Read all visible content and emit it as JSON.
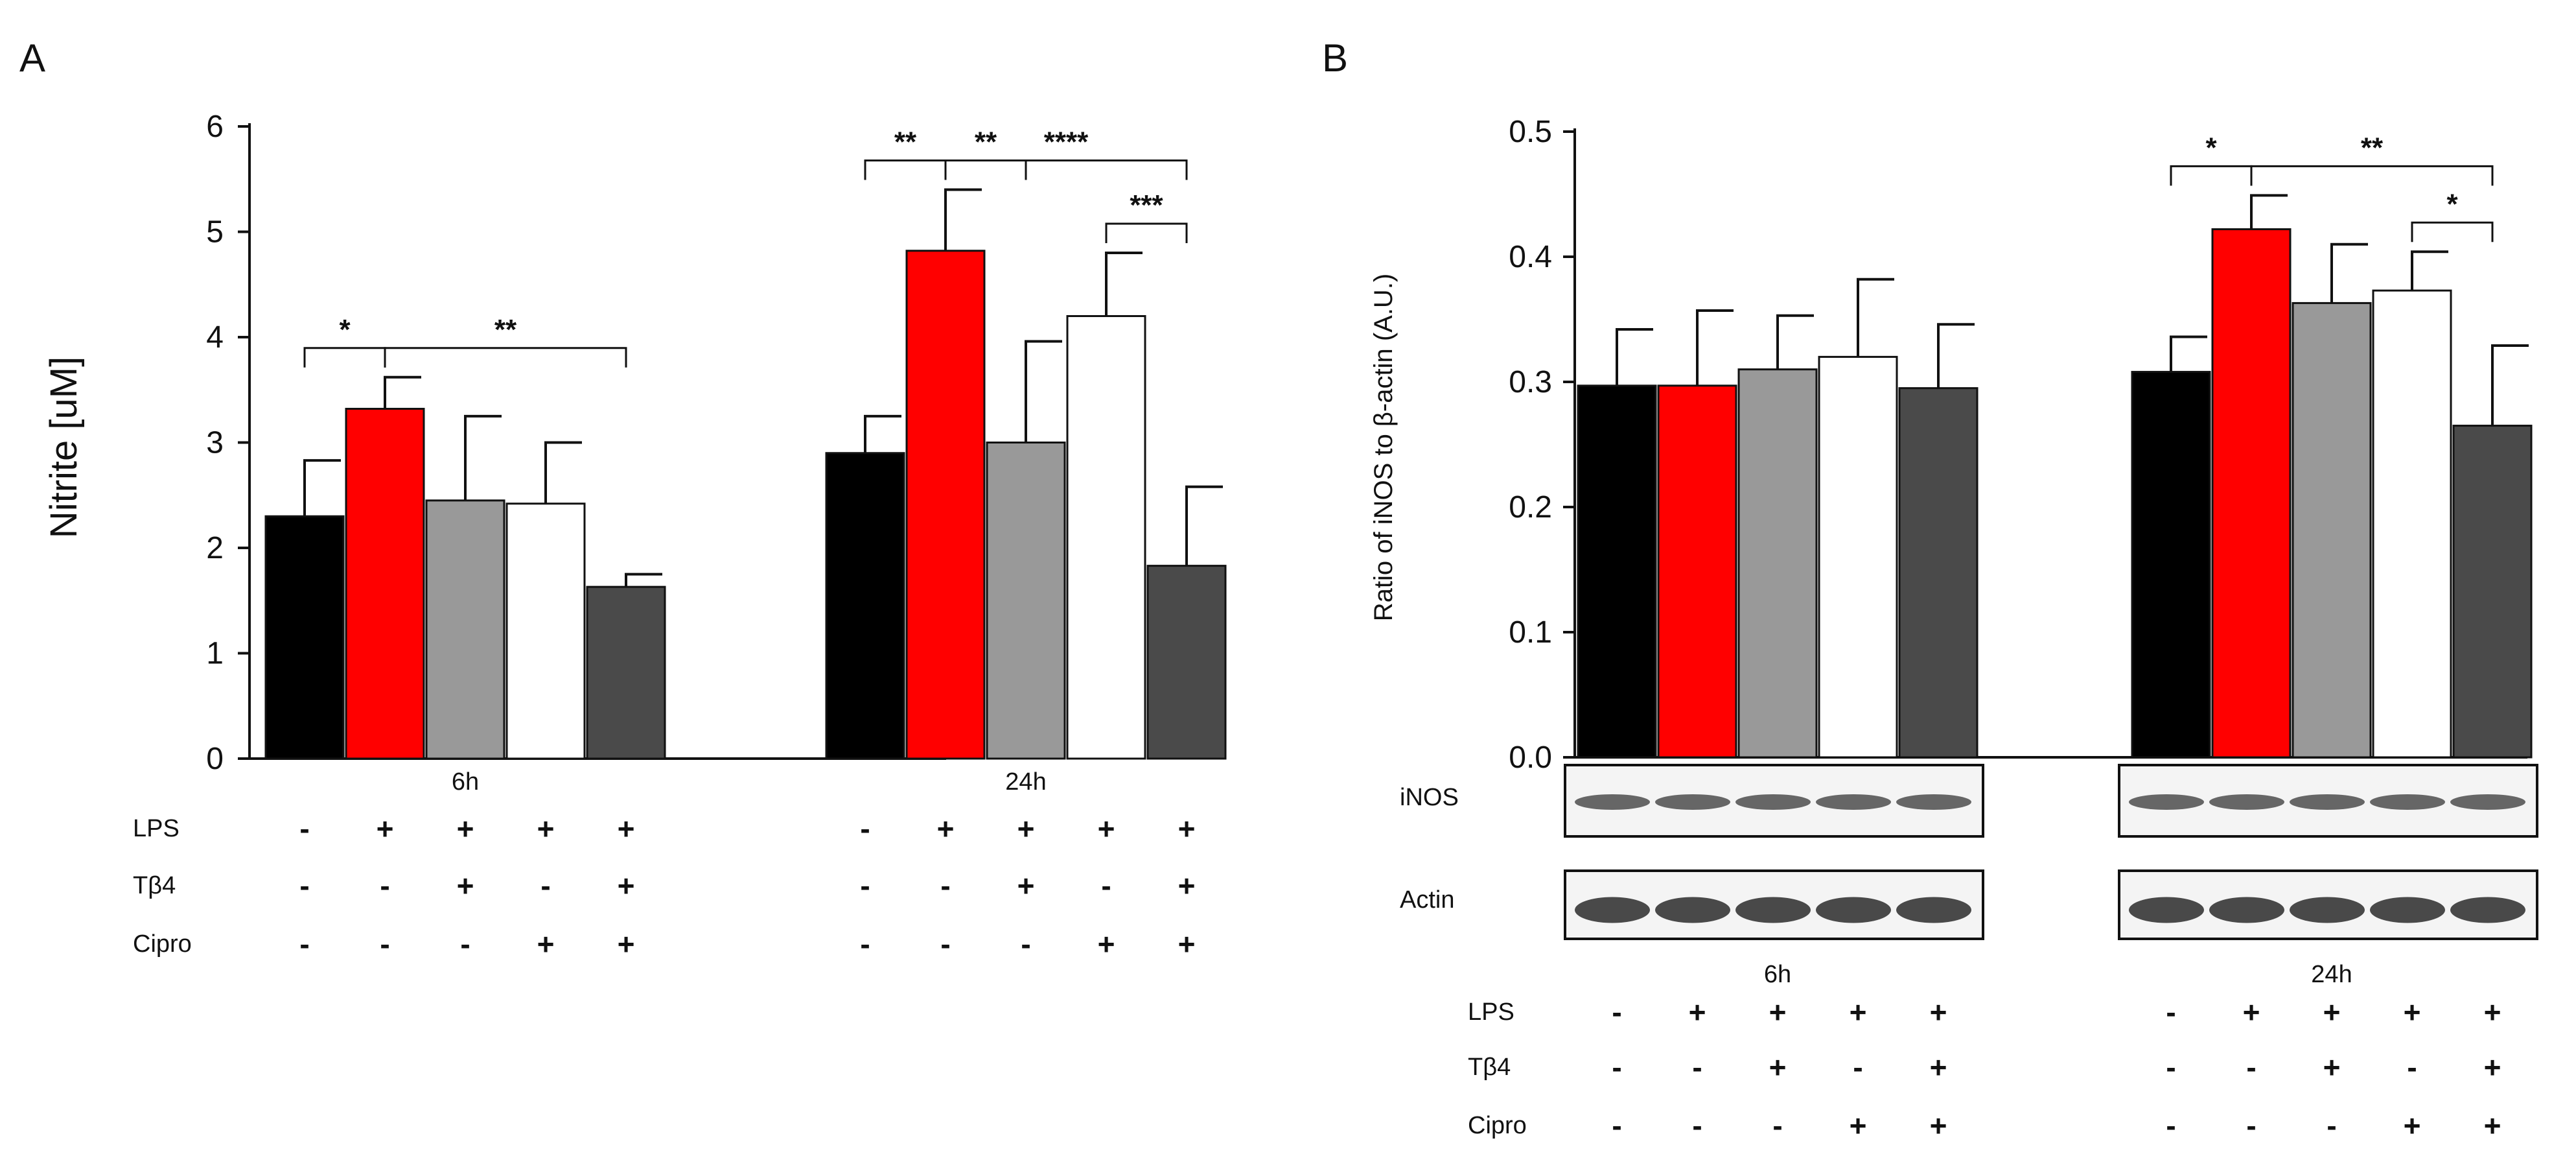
{
  "colors": {
    "control": "#000000",
    "LPS": "#ff0000",
    "LPS + Tβ4": "#999999",
    "LPS + Cipro": "#ffffff",
    "LPS + Tβ4 + Cipro": "#4a4a4a"
  },
  "chart_data": [
    {
      "panel": "A",
      "type": "bar",
      "ylabel": "Nitrite [uM]",
      "ylim": [
        0,
        6
      ],
      "yticks": [
        "0",
        "1",
        "2",
        "3",
        "4",
        "5",
        "6"
      ],
      "groups": [
        "6h",
        "24h"
      ],
      "treatments": [
        "control",
        "LPS",
        "LPS + Tβ4",
        "LPS + Cipro",
        "LPS + Tβ4 + Cipro"
      ],
      "values": [
        [
          2.3,
          3.32,
          2.45,
          2.42,
          1.63
        ],
        [
          2.9,
          4.82,
          3.0,
          4.2,
          1.83
        ]
      ],
      "errors": [
        [
          0.53,
          0.3,
          0.8,
          0.58,
          0.12
        ],
        [
          0.35,
          0.58,
          0.96,
          0.6,
          0.75
        ]
      ],
      "significance": [
        {
          "group": 0,
          "from": 0,
          "to": 1,
          "label": "*"
        },
        {
          "group": 0,
          "from": 1,
          "to": 4,
          "label": "**"
        },
        {
          "group": 1,
          "from": 0,
          "to": 1,
          "label": "**"
        },
        {
          "group": 1,
          "from": 1,
          "to": 2,
          "label": "**"
        },
        {
          "group": 1,
          "from": 1,
          "to": 4,
          "label": "****"
        },
        {
          "group": 1,
          "from": 3,
          "to": 4,
          "label": "***"
        }
      ],
      "table": {
        "rows": [
          {
            "label": "LPS",
            "signs": [
              "-",
              "+",
              "+",
              "+",
              "+"
            ]
          },
          {
            "label": "Tβ4",
            "signs": [
              "-",
              "-",
              "+",
              "-",
              "+"
            ]
          },
          {
            "label": "Cipro",
            "signs": [
              "-",
              "-",
              "-",
              "+",
              "+"
            ]
          }
        ]
      }
    },
    {
      "panel": "B",
      "type": "bar",
      "ylabel": "Ratio of iNOS to β-actin (A.U.)",
      "ylim": [
        0,
        0.5
      ],
      "yticks": [
        "0.0",
        "0.1",
        "0.2",
        "0.3",
        "0.4",
        "0.5"
      ],
      "groups": [
        "6h",
        "24h"
      ],
      "treatments": [
        "control",
        "LPS",
        "LPS + Tβ4",
        "LPS + Cipro",
        "LPS + Tβ4 + Cipro"
      ],
      "values": [
        [
          0.297,
          0.297,
          0.31,
          0.32,
          0.295
        ],
        [
          0.308,
          0.422,
          0.363,
          0.373,
          0.265
        ]
      ],
      "errors": [
        [
          0.045,
          0.06,
          0.043,
          0.062,
          0.051
        ],
        [
          0.028,
          0.027,
          0.047,
          0.031,
          0.064
        ]
      ],
      "significance": [
        {
          "group": 1,
          "from": 0,
          "to": 1,
          "label": "*"
        },
        {
          "group": 1,
          "from": 1,
          "to": 4,
          "label": "**"
        },
        {
          "group": 1,
          "from": 3,
          "to": 4,
          "label": "*"
        }
      ],
      "blots": [
        "iNOS",
        "Actin"
      ],
      "table": {
        "rows": [
          {
            "label": "LPS",
            "signs": [
              "-",
              "+",
              "+",
              "+",
              "+"
            ]
          },
          {
            "label": "Tβ4",
            "signs": [
              "-",
              "-",
              "+",
              "-",
              "+"
            ]
          },
          {
            "label": "Cipro",
            "signs": [
              "-",
              "-",
              "-",
              "+",
              "+"
            ]
          }
        ]
      }
    }
  ]
}
